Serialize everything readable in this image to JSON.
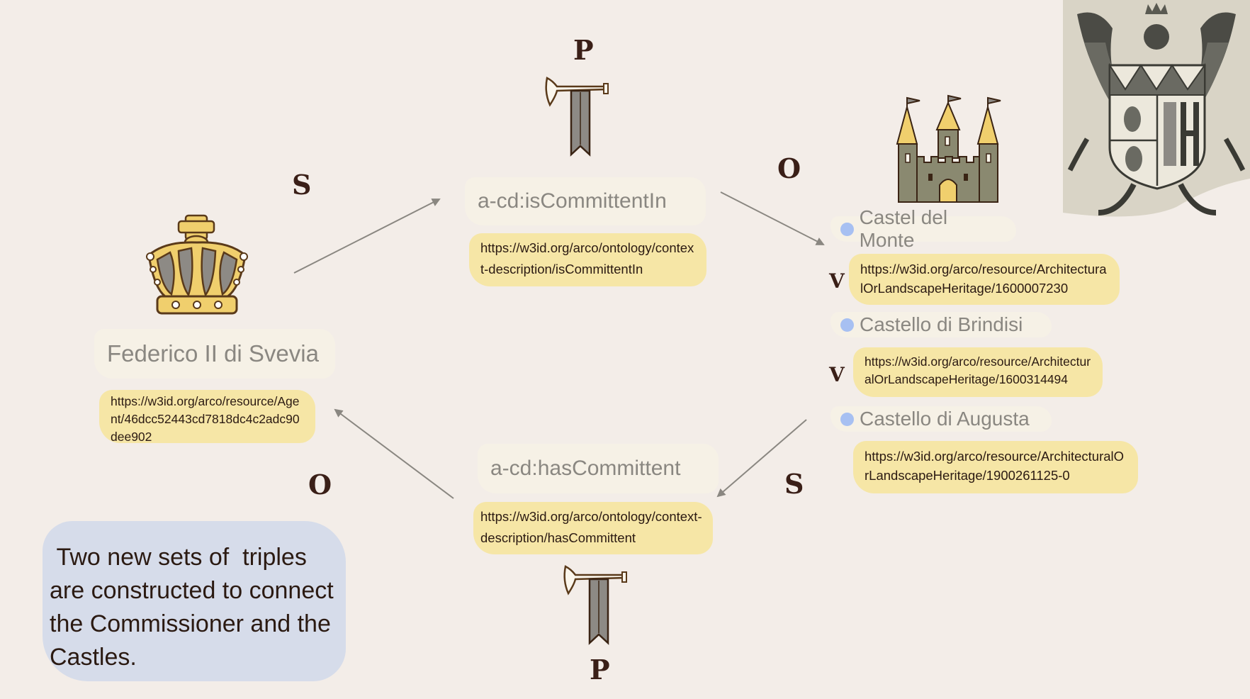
{
  "letters": {
    "s_left": "S",
    "p_top": "P",
    "o_top_right": "O",
    "o_bottom_left": "O",
    "s_bottom_right": "S",
    "p_bottom": "P",
    "v_1": "V",
    "v_2": "V"
  },
  "subject": {
    "label": "Federico II di Svevia",
    "url": "https://w3id.org/arco/resource/Agent/46dcc52443cd7818dc4c2adc90dee902",
    "icon": "crown-icon"
  },
  "predicate_top": {
    "label": "a-cd:isCommittentIn",
    "url": "https://w3id.org/arco/ontology/context-description/isCommittentIn",
    "icon": "trumpet-banner-icon"
  },
  "predicate_bottom": {
    "label": "a-cd:hasCommittent",
    "url": "https://w3id.org/arco/ontology/context-description/hasCommittent",
    "icon": "trumpet-banner-icon"
  },
  "castles": [
    {
      "name": "Castel del Monte",
      "url": "https://w3id.org/arco/resource/ArchitecturalOrLandscapeHeritage/1600007230"
    },
    {
      "name": "Castello di Brindisi",
      "url": "https://w3id.org/arco/resource/ArchitecturalOrLandscapeHeritage/1600314494"
    },
    {
      "name": "Castello di Augusta",
      "url": "https://w3id.org/arco/resource/ArchitecturalOrLandscapeHeritage/1900261125-0"
    }
  ],
  "note": {
    "text": " Two new sets of  triples are constructed to connect the Commissioner and the Castles."
  },
  "icons": [
    "crown-icon",
    "trumpet-banner-icon",
    "castle-icon",
    "coat-of-arms-eagle-icon"
  ],
  "colors": {
    "background": "#f3ede8",
    "label_pill": "#f6f1e6",
    "url_pill": "#f6e6a6",
    "note_box": "#d6dcea",
    "bullet": "#a7c0f2",
    "letters": "#3a1f17"
  }
}
